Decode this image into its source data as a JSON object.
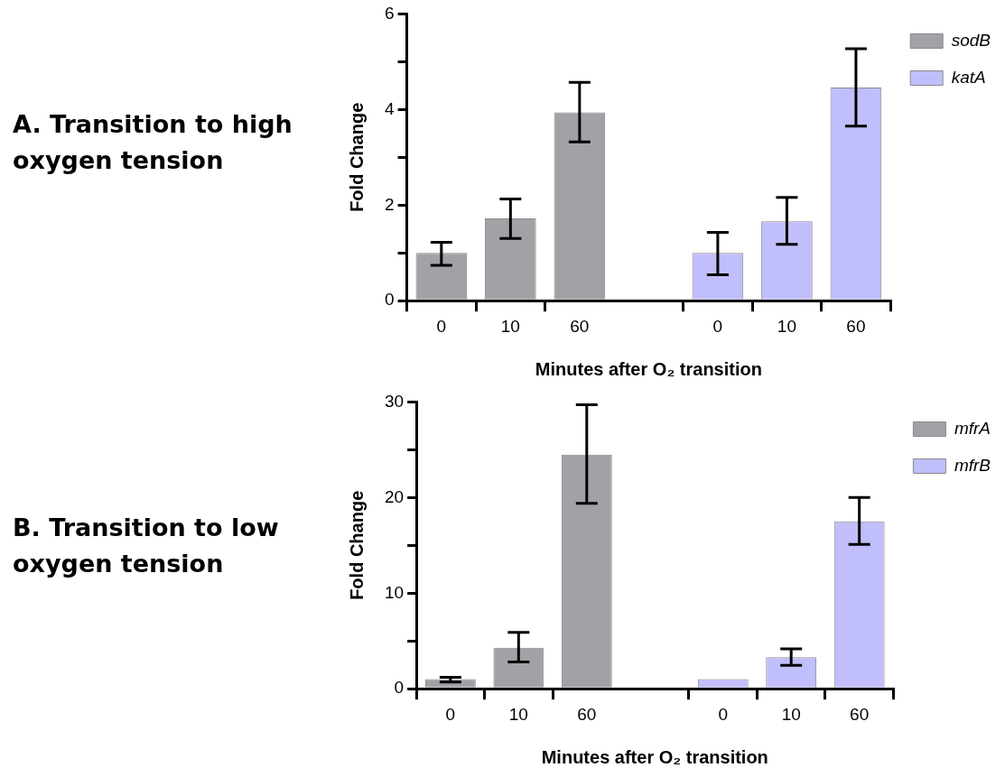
{
  "chart_data": [
    {
      "type": "bar",
      "title": "A. Transition to high oxygen tension",
      "xlabel": "Minutes after O₂ transition",
      "ylabel": "Fold Change",
      "categories": [
        "0",
        "10",
        "60",
        null,
        "0",
        "10",
        "60"
      ],
      "series": [
        {
          "name": "sodB",
          "color": "#a2a1a6",
          "values": [
            1.0,
            1.72,
            3.94,
            null,
            null,
            null,
            null
          ],
          "errors": [
            [
              0.74,
              1.22
            ],
            [
              1.3,
              2.13
            ],
            [
              3.32,
              4.57
            ],
            null,
            null,
            null,
            null
          ]
        },
        {
          "name": "katA",
          "color": "#c0bffb",
          "values": [
            null,
            null,
            null,
            null,
            1.0,
            1.66,
            4.46
          ],
          "errors": [
            null,
            null,
            null,
            null,
            [
              0.54,
              1.43
            ],
            [
              1.18,
              2.16
            ],
            [
              3.65,
              5.27
            ]
          ]
        }
      ],
      "ylim": [
        0,
        6
      ],
      "yticks": [
        0,
        {
          "value": 1,
          "label": null
        },
        2,
        {
          "value": 3,
          "label": null
        },
        4,
        {
          "value": 5,
          "label": null
        },
        6
      ],
      "legend": "top right"
    },
    {
      "type": "bar",
      "title": "B. Transition to low oxygen tension",
      "xlabel": "Minutes after O₂ transition",
      "ylabel": "Fold Change",
      "categories": [
        "0",
        "10",
        "60",
        null,
        "0",
        "10",
        "60"
      ],
      "series": [
        {
          "name": "mfrA",
          "color": "#a2a1a6",
          "values": [
            1.0,
            4.3,
            24.5,
            null,
            null,
            null,
            null
          ],
          "errors": [
            [
              0.7,
              1.2
            ],
            [
              2.8,
              5.9
            ],
            [
              19.4,
              29.7
            ],
            null,
            null,
            null,
            null
          ]
        },
        {
          "name": "mfrB",
          "color": "#c0bffb",
          "values": [
            null,
            null,
            null,
            null,
            1.0,
            3.3,
            17.5
          ],
          "errors": [
            null,
            null,
            null,
            null,
            null,
            [
              2.45,
              4.17
            ],
            [
              15.1,
              20.0
            ]
          ]
        }
      ],
      "ylim": [
        0,
        30
      ],
      "yticks": [
        0,
        {
          "value": 5,
          "label": null
        },
        10,
        {
          "value": 15,
          "label": null
        },
        20,
        {
          "value": 25,
          "label": null
        },
        30
      ],
      "legend": "top right"
    }
  ]
}
